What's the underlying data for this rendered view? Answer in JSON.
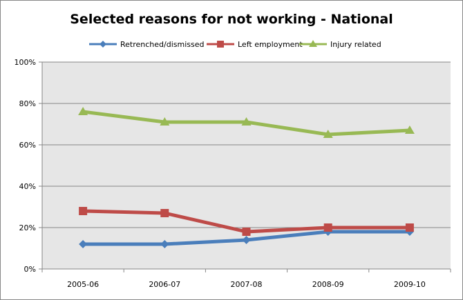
{
  "chart_data": {
    "type": "line",
    "title": "Selected reasons for not working - National",
    "xlabel": "",
    "ylabel": "",
    "categories": [
      "2005-06",
      "2006-07",
      "2007-08",
      "2008-09",
      "2009-10"
    ],
    "ylim": [
      0,
      100
    ],
    "yticks": [
      0,
      20,
      40,
      60,
      80,
      100
    ],
    "ytick_labels": [
      "0%",
      "20%",
      "40%",
      "60%",
      "80%",
      "100%"
    ],
    "grid": true,
    "legend_position": "top",
    "series": [
      {
        "name": "Retrenched/dismissed",
        "color": "#4A7EBB",
        "marker": "diamond",
        "values": [
          12,
          12,
          14,
          18,
          18
        ]
      },
      {
        "name": "Left employment",
        "color": "#BE4B48",
        "marker": "square",
        "values": [
          28,
          27,
          18,
          20,
          20
        ]
      },
      {
        "name": "Injury related",
        "color": "#98B954",
        "marker": "triangle",
        "values": [
          76,
          71,
          71,
          65,
          67
        ]
      }
    ]
  }
}
